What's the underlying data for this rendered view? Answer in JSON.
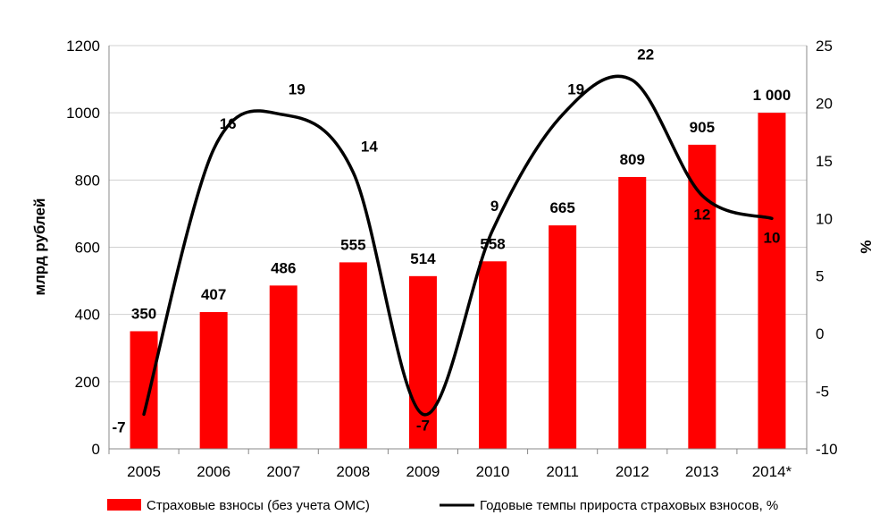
{
  "chart_data": {
    "type": "bar",
    "categories": [
      "2005",
      "2006",
      "2007",
      "2008",
      "2009",
      "2010",
      "2011",
      "2012",
      "2013",
      "2014*"
    ],
    "series": [
      {
        "name": "Страховые взносы (без учета ОМС)",
        "type": "bar",
        "axis": "left",
        "color": "#ff0000",
        "values": [
          350,
          407,
          486,
          555,
          514,
          558,
          665,
          809,
          905,
          1000
        ],
        "labels": [
          "350",
          "407",
          "486",
          "555",
          "514",
          "558",
          "665",
          "809",
          "905",
          "1 000"
        ]
      },
      {
        "name": "Годовые темпы прироста страховых взносов, %",
        "type": "line",
        "axis": "right",
        "color": "#000000",
        "values": [
          -7,
          16,
          19,
          14,
          -7,
          9,
          19,
          22,
          12,
          10
        ],
        "labels": [
          "-7",
          "16",
          "19",
          "14",
          "-7",
          "9",
          "19",
          "22",
          "12",
          "10"
        ]
      }
    ],
    "ylabel": "млрд  рублей",
    "y2label": "%",
    "ylim": [
      0,
      1200
    ],
    "y2lim": [
      -10,
      25
    ],
    "yticks": [
      "0",
      "200",
      "400",
      "600",
      "800",
      "1000",
      "1200"
    ],
    "y2ticks": [
      "-10",
      "-5",
      "0",
      "5",
      "10",
      "15",
      "20",
      "25"
    ],
    "grid": true,
    "legend": "bottom"
  }
}
